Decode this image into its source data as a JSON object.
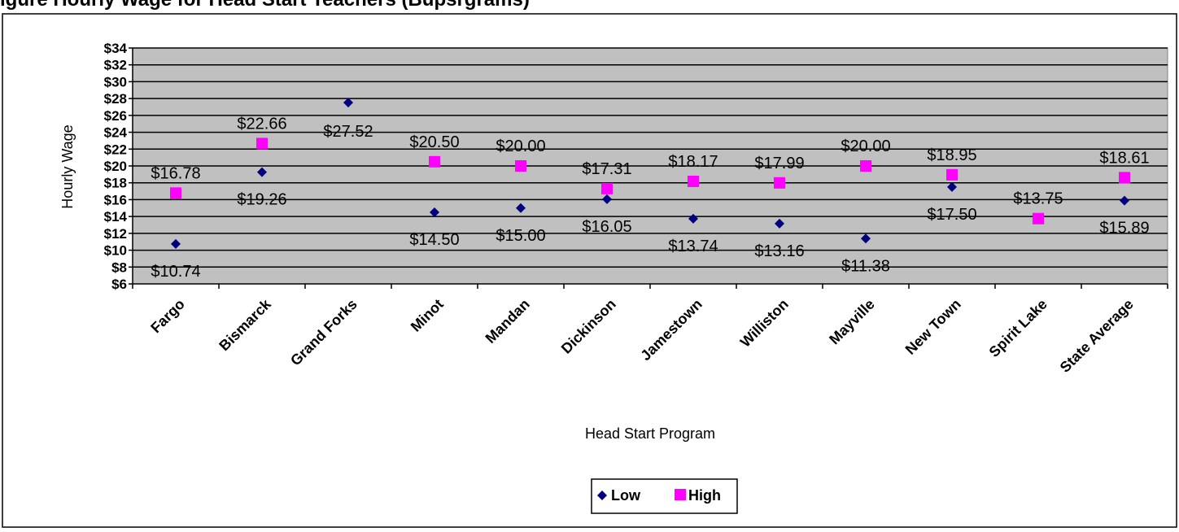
{
  "chart_data": {
    "type": "scatter",
    "title": "igure  Hourly Wage for Head Start Teachers (Bupsrgrams)",
    "xlabel": "Head Start Program",
    "ylabel": "Hourly Wage",
    "categories": [
      "Fargo",
      "Bismarck",
      "Grand Forks",
      "Minot",
      "Mandan",
      "Dickinson",
      "Jamestown",
      "Williston",
      "Mayville",
      "New Town",
      "Spirit Lake",
      "State Average"
    ],
    "ylim": [
      6,
      34
    ],
    "y_ticks": [
      "$6",
      "$8",
      "$10",
      "$12",
      "$14",
      "$16",
      "$18",
      "$20",
      "$22",
      "$24",
      "$26",
      "$28",
      "$30",
      "$32",
      "$34"
    ],
    "grid": true,
    "legend_position": "bottom",
    "series": [
      {
        "name": "Low",
        "color": "#000080",
        "marker": "diamond",
        "values": [
          10.74,
          19.26,
          27.52,
          14.5,
          15.0,
          16.05,
          13.74,
          13.16,
          11.38,
          17.5,
          null,
          15.89
        ],
        "labels": [
          "$10.74",
          "$19.26",
          "$27.52",
          "$14.50",
          "$15.00",
          "$16.05",
          "$13.74",
          "$13.16",
          "$11.38",
          "$17.50",
          "",
          "$15.89"
        ]
      },
      {
        "name": "High",
        "color": "#ff00ff",
        "marker": "square",
        "values": [
          16.78,
          22.66,
          null,
          20.5,
          20.0,
          17.31,
          18.17,
          17.99,
          20.0,
          18.95,
          13.75,
          18.61
        ],
        "labels": [
          "$16.78",
          "$22.66",
          "",
          "$20.50",
          "$20.00",
          "$17.31",
          "$18.17",
          "$17.99",
          "$20.00",
          "$18.95",
          "$13.75",
          "$18.61"
        ]
      }
    ]
  }
}
